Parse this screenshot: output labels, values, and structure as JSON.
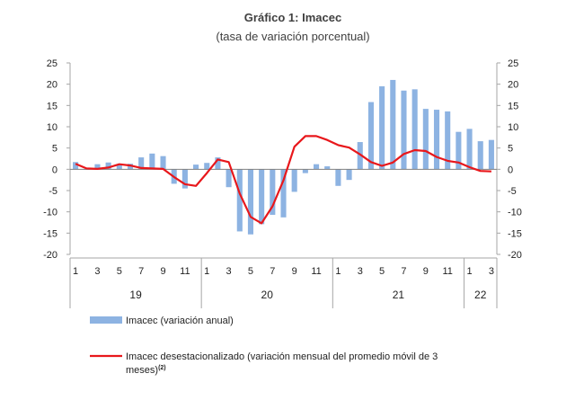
{
  "chart_data": {
    "type": "bar",
    "title": "Gráfico 1: Imacec",
    "subtitle": "(tasa de variación porcentual)",
    "ylim": [
      -20,
      25
    ],
    "yticks": [
      "25",
      "20",
      "15",
      "10",
      "5",
      "0",
      "-5",
      "-10",
      "-15",
      "-20"
    ],
    "y2ticks": [
      "25",
      "20",
      "15",
      "10",
      "5",
      "0",
      "-5",
      "-10",
      "-15",
      "-20"
    ],
    "x_tick_labels": [
      "1",
      "3",
      "5",
      "7",
      "9",
      "11",
      "1",
      "3",
      "5",
      "7",
      "9",
      "11",
      "1",
      "3",
      "5",
      "7",
      "9",
      "11",
      "1",
      "3"
    ],
    "years": [
      "19",
      "20",
      "21",
      "22"
    ],
    "months": [
      "2019-01",
      "2019-02",
      "2019-03",
      "2019-04",
      "2019-05",
      "2019-06",
      "2019-07",
      "2019-08",
      "2019-09",
      "2019-10",
      "2019-11",
      "2019-12",
      "2020-01",
      "2020-02",
      "2020-03",
      "2020-04",
      "2020-05",
      "2020-06",
      "2020-07",
      "2020-08",
      "2020-09",
      "2020-10",
      "2020-11",
      "2020-12",
      "2021-01",
      "2021-02",
      "2021-03",
      "2021-04",
      "2021-05",
      "2021-06",
      "2021-07",
      "2021-08",
      "2021-09",
      "2021-10",
      "2021-11",
      "2021-12",
      "2022-01",
      "2022-02",
      "2022-03"
    ],
    "series": [
      {
        "name": "Imacec (variación anual)",
        "kind": "bar",
        "color": "#8db3e2",
        "values": [
          1.7,
          -0.1,
          1.2,
          1.6,
          1.0,
          1.3,
          2.8,
          3.7,
          3.1,
          -3.4,
          -4.5,
          1.1,
          1.5,
          2.8,
          -4.2,
          -14.6,
          -15.3,
          -12.9,
          -10.7,
          -11.3,
          -5.3,
          -0.9,
          1.2,
          0.7,
          -3.9,
          -2.5,
          6.4,
          15.8,
          19.5,
          21.0,
          18.5,
          18.8,
          14.2,
          14.0,
          13.6,
          8.8,
          9.5,
          6.6,
          6.9
        ]
      },
      {
        "name": "Imacec desestacionalizado (variación mensual del promedio móvil de 3 meses)",
        "name_superscript": "(2)",
        "kind": "line",
        "color": "#e8171b",
        "values": [
          1.3,
          0.2,
          0.1,
          0.4,
          1.2,
          0.9,
          0.3,
          0.2,
          0.1,
          -1.8,
          -3.5,
          -3.9,
          -0.9,
          2.3,
          1.7,
          -5.7,
          -11.2,
          -12.7,
          -8.7,
          -2.6,
          5.3,
          7.8,
          7.8,
          6.9,
          5.7,
          5.1,
          3.5,
          1.7,
          0.8,
          1.6,
          3.6,
          4.5,
          4.3,
          2.9,
          2.0,
          1.6,
          0.5,
          -0.4,
          -0.5
        ]
      }
    ],
    "legend": {
      "bar_label": "Imacec (variación anual)",
      "line_label": "Imacec desestacionalizado (variación mensual del promedio móvil de 3",
      "line_label_2": "meses)",
      "line_superscript": "(2)"
    }
  }
}
